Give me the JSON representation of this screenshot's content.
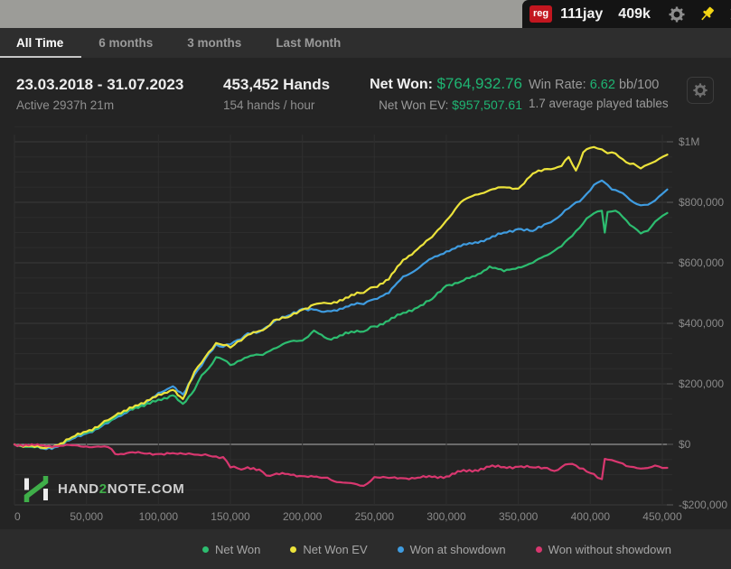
{
  "titlebar": {
    "badge": "reg",
    "player": "111jay",
    "hands_short": "409k",
    "icons": [
      "gear-icon",
      "pin-icon",
      "close-icon"
    ],
    "pin_color": "#f3d513"
  },
  "tabs": [
    {
      "label": "All Time",
      "active": true
    },
    {
      "label": "6 months",
      "active": false
    },
    {
      "label": "3 months",
      "active": false
    },
    {
      "label": "Last Month",
      "active": false
    }
  ],
  "stats": {
    "date_range": "23.03.2018 - 31.07.2023",
    "active_time": "Active 2937h 21m",
    "hands_total": "453,452 Hands",
    "hands_per_hour": "154 hands / hour",
    "net_won_label": "Net Won:",
    "net_won_value": "$764,932.76",
    "net_won_ev_label": "Net Won  EV:",
    "net_won_ev_value": "$957,507.61",
    "win_rate_label": "Win Rate:",
    "win_rate_value": "6.62",
    "win_rate_unit": "bb/100",
    "avg_tables": "1.7 average played tables",
    "money_color": "#1fb573"
  },
  "logo": {
    "pre": "HAND",
    "num": "2",
    "post": "NOTE.COM",
    "green": "#3fae49"
  },
  "chart_data": {
    "type": "line",
    "x_units": "hands (thousands)",
    "y_units": "USD (thousands)",
    "xlim": [
      0,
      453.452
    ],
    "ylim": [
      -250,
      1050
    ],
    "grid": "minor every 50k$, major every 200k$, verticals every 50k hands",
    "x_ticks": [
      {
        "v": 0,
        "label": "0"
      },
      {
        "v": 50,
        "label": "50,000"
      },
      {
        "v": 100,
        "label": "100,000"
      },
      {
        "v": 150,
        "label": "150,000"
      },
      {
        "v": 200,
        "label": "200,000"
      },
      {
        "v": 250,
        "label": "250,000"
      },
      {
        "v": 300,
        "label": "300,000"
      },
      {
        "v": 350,
        "label": "350,000"
      },
      {
        "v": 400,
        "label": "400,000"
      },
      {
        "v": 450,
        "label": "450,000"
      }
    ],
    "y_ticks": [
      {
        "v": 1000,
        "label": "$1M"
      },
      {
        "v": 800,
        "label": "$800,000"
      },
      {
        "v": 600,
        "label": "$600,000"
      },
      {
        "v": 400,
        "label": "$400,000"
      },
      {
        "v": 200,
        "label": "$200,000"
      },
      {
        "v": 0,
        "label": "$0"
      },
      {
        "v": -200,
        "label": "-$200,000"
      }
    ],
    "x": [
      0,
      10,
      20,
      30,
      40,
      50,
      60,
      65,
      70,
      80,
      90,
      100,
      110,
      117,
      125,
      130,
      135,
      140,
      145,
      150,
      155,
      160,
      170,
      175,
      180,
      190,
      200,
      208,
      215,
      220,
      230,
      240,
      245,
      250,
      260,
      270,
      280,
      290,
      300,
      310,
      320,
      330,
      340,
      350,
      360,
      370,
      375,
      380,
      385,
      390,
      395,
      400,
      405,
      408,
      410,
      412,
      415,
      420,
      425,
      430,
      435,
      440,
      445,
      450,
      453.452
    ],
    "series": [
      {
        "name": "Net Won",
        "color": "#2dbd70",
        "values": [
          0,
          -8,
          -13,
          -4,
          22,
          38,
          62,
          75,
          90,
          118,
          126,
          148,
          162,
          134,
          180,
          228,
          252,
          288,
          280,
          262,
          275,
          286,
          296,
          304,
          316,
          338,
          343,
          376,
          355,
          346,
          370,
          372,
          378,
          390,
          408,
          435,
          452,
          480,
          525,
          538,
          556,
          588,
          572,
          585,
          600,
          625,
          640,
          655,
          680,
          705,
          730,
          755,
          770,
          772,
          700,
          768,
          770,
          765,
          740,
          718,
          697,
          706,
          736,
          755,
          764.9
        ]
      },
      {
        "name": "Net Won  EV",
        "color": "#ece33b",
        "values": [
          0,
          -6,
          -12,
          -3,
          24,
          42,
          66,
          80,
          95,
          122,
          135,
          165,
          180,
          150,
          240,
          270,
          305,
          335,
          328,
          320,
          340,
          355,
          375,
          385,
          410,
          420,
          445,
          462,
          468,
          465,
          485,
          500,
          510,
          520,
          545,
          610,
          645,
          685,
          740,
          800,
          825,
          840,
          850,
          845,
          895,
          910,
          912,
          920,
          950,
          905,
          965,
          980,
          978,
          975,
          968,
          962,
          965,
          950,
          932,
          928,
          912,
          925,
          935,
          950,
          957.5
        ]
      },
      {
        "name": "Won at showdown",
        "color": "#3f9ce0",
        "values": [
          0,
          -5,
          -14,
          -8,
          18,
          36,
          58,
          70,
          86,
          114,
          130,
          170,
          192,
          165,
          230,
          260,
          300,
          330,
          322,
          330,
          345,
          360,
          372,
          388,
          405,
          425,
          448,
          445,
          438,
          440,
          455,
          465,
          472,
          480,
          500,
          555,
          580,
          615,
          638,
          655,
          668,
          680,
          700,
          712,
          705,
          730,
          742,
          760,
          780,
          800,
          815,
          840,
          865,
          872,
          865,
          858,
          842,
          835,
          820,
          800,
          790,
          792,
          806,
          828,
          842.4
        ]
      },
      {
        "name": "Won without showdown",
        "color": "#d8376f",
        "values": [
          0,
          -4,
          -3,
          -6,
          -3,
          -7,
          -8,
          -9,
          -32,
          -27,
          -30,
          -32,
          -29,
          -31,
          -34,
          -36,
          -37,
          -40,
          -42,
          -76,
          -79,
          -80,
          -83,
          -103,
          -100,
          -98,
          -105,
          -107,
          -110,
          -118,
          -127,
          -136,
          -130,
          -108,
          -111,
          -112,
          -110,
          -108,
          -106,
          -90,
          -85,
          -74,
          -75,
          -74,
          -76,
          -78,
          -88,
          -75,
          -65,
          -70,
          -80,
          -95,
          -110,
          -115,
          -48,
          -50,
          -52,
          -60,
          -72,
          -75,
          -80,
          -78,
          -70,
          -78,
          -77.5
        ]
      }
    ],
    "z_order": [
      2,
      0,
      1,
      3
    ],
    "grid_colors": {
      "minor": "#2d2d2d",
      "major": "#3a3a3a",
      "zero": "#b2b2b2",
      "vertical": "#2f2f2f"
    },
    "legend_position": "bottom"
  }
}
